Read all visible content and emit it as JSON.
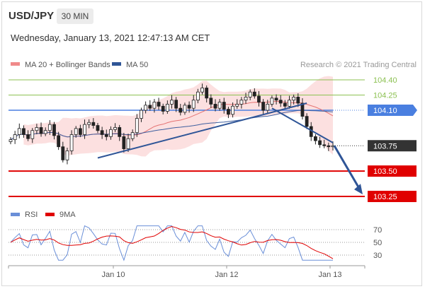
{
  "header": {
    "pair": "USD/JPY",
    "interval": "30 MIN",
    "datetime": "Wednesday, January 13, 2021 12:47:13 AM CET"
  },
  "legend": {
    "items": [
      {
        "label": "MA 20 + Bollinger Bands",
        "color": "#f08a8a"
      },
      {
        "label": "MA 50",
        "color": "#2f5597"
      }
    ],
    "credit": "Research © 2021 Trading Central"
  },
  "rsi_legend": {
    "items": [
      {
        "label": "RSI",
        "color": "#6a8fd8"
      },
      {
        "label": "9MA",
        "color": "#e00000"
      }
    ]
  },
  "colors": {
    "resistance_green": "#8cc152",
    "pivot_blue": "#4a7fe0",
    "support_red": "#e00000",
    "current_bg": "#333333",
    "trend": "#2f5597",
    "bollinger_fill": "#fbd5d5"
  },
  "chart_data": [
    {
      "type": "candlestick",
      "title": "USD/JPY",
      "x_ticks": [
        "Jan 10",
        "Jan 12",
        "Jan 13"
      ],
      "ylim": [
        103.15,
        104.5
      ],
      "price_levels": [
        {
          "value": 104.4,
          "label": "104.40",
          "kind": "resistance"
        },
        {
          "value": 104.25,
          "label": "104.25",
          "kind": "resistance"
        },
        {
          "value": 104.1,
          "label": "104.10",
          "kind": "pivot"
        },
        {
          "value": 103.75,
          "label": "103.75",
          "kind": "current"
        },
        {
          "value": 103.5,
          "label": "103.50",
          "kind": "support"
        },
        {
          "value": 103.25,
          "label": "103.25",
          "kind": "support"
        }
      ],
      "close_series": [
        103.81,
        103.86,
        103.92,
        103.86,
        103.82,
        103.9,
        103.93,
        103.87,
        103.9,
        103.96,
        103.85,
        103.74,
        103.61,
        103.7,
        103.86,
        103.92,
        103.86,
        103.96,
        103.98,
        103.95,
        103.9,
        103.86,
        103.84,
        103.91,
        103.93,
        103.84,
        103.72,
        103.82,
        103.88,
        104.02,
        104.1,
        104.15,
        104.12,
        104.18,
        104.14,
        104.09,
        104.16,
        104.2,
        104.12,
        104.08,
        104.15,
        104.12,
        104.2,
        104.28,
        104.32,
        104.22,
        104.16,
        104.12,
        104.18,
        104.11,
        104.06,
        104.14,
        104.16,
        104.2,
        104.23,
        104.28,
        104.24,
        104.18,
        104.1,
        104.16,
        104.22,
        104.2,
        104.17,
        104.14,
        104.2,
        104.23,
        104.17,
        104.04,
        103.94,
        103.84,
        103.8,
        103.76,
        103.75,
        103.74,
        103.75
      ],
      "trend_lines": [
        {
          "from_index": 20,
          "from_price": 103.63,
          "to_index": 68,
          "to_price": 104.17
        },
        {
          "from_index": 60,
          "from_price": 104.12,
          "to_index": 74,
          "to_price": 103.78
        }
      ],
      "forecast_arrow": {
        "from_price": 103.75,
        "to_price": 103.27
      }
    },
    {
      "type": "line",
      "title": "RSI",
      "series": [
        {
          "name": "RSI"
        },
        {
          "name": "9MA"
        }
      ],
      "ylim": [
        20,
        80
      ],
      "y_ticks": [
        70,
        50,
        30
      ]
    }
  ]
}
